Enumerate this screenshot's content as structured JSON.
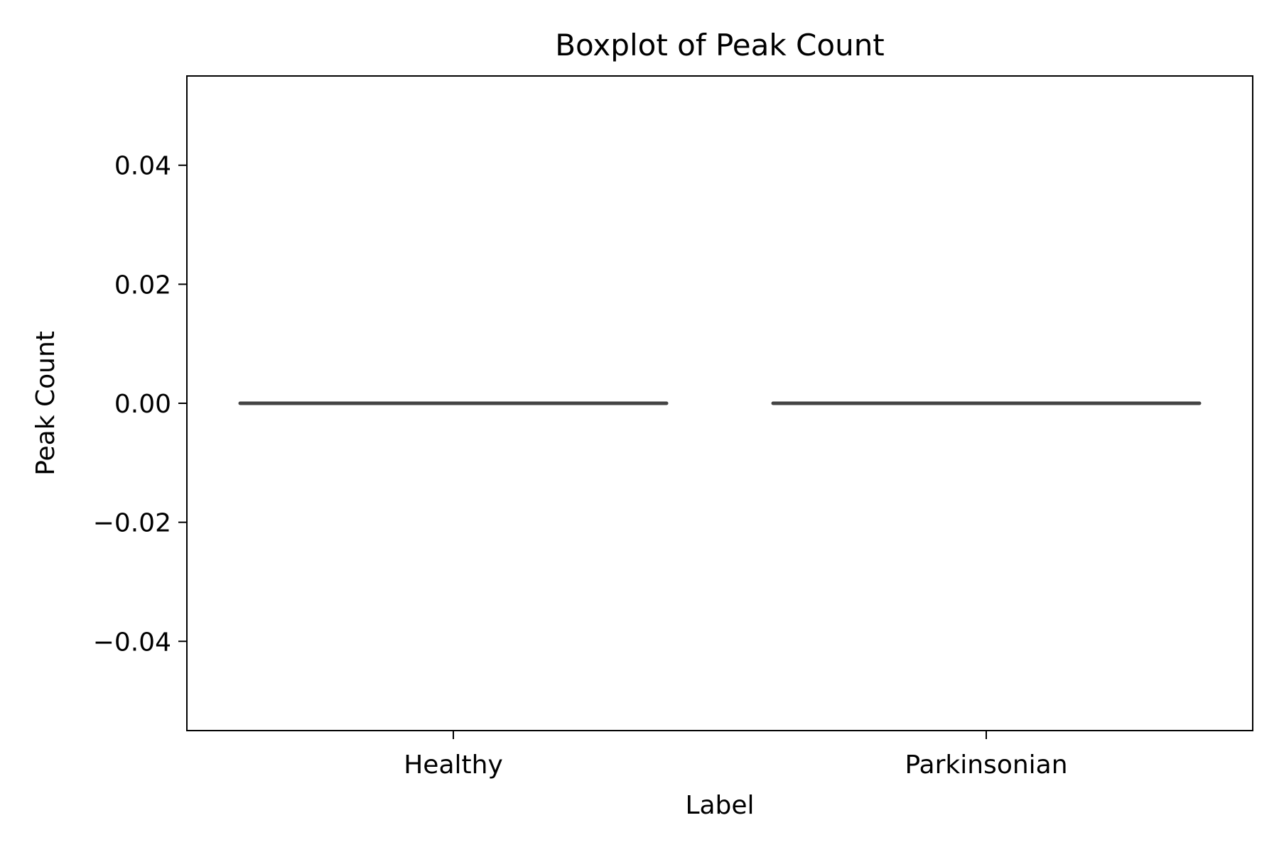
{
  "chart_data": {
    "type": "boxplot",
    "title": "Boxplot of Peak Count",
    "xlabel": "Label",
    "ylabel": "Peak Count",
    "categories": [
      "Healthy",
      "Parkinsonian"
    ],
    "boxes": [
      {
        "category": "Healthy",
        "min": 0,
        "q1": 0,
        "median": 0,
        "q3": 0,
        "max": 0
      },
      {
        "category": "Parkinsonian",
        "min": 0,
        "q1": 0,
        "median": 0,
        "q3": 0,
        "max": 0
      }
    ],
    "ylim": [
      -0.055,
      0.055
    ],
    "yticks": [
      -0.04,
      -0.02,
      0.0,
      0.02,
      0.04
    ],
    "ytick_labels": [
      "−0.04",
      "−0.02",
      "0.00",
      "0.02",
      "0.04"
    ],
    "grid": false,
    "box_color": "#444444"
  }
}
